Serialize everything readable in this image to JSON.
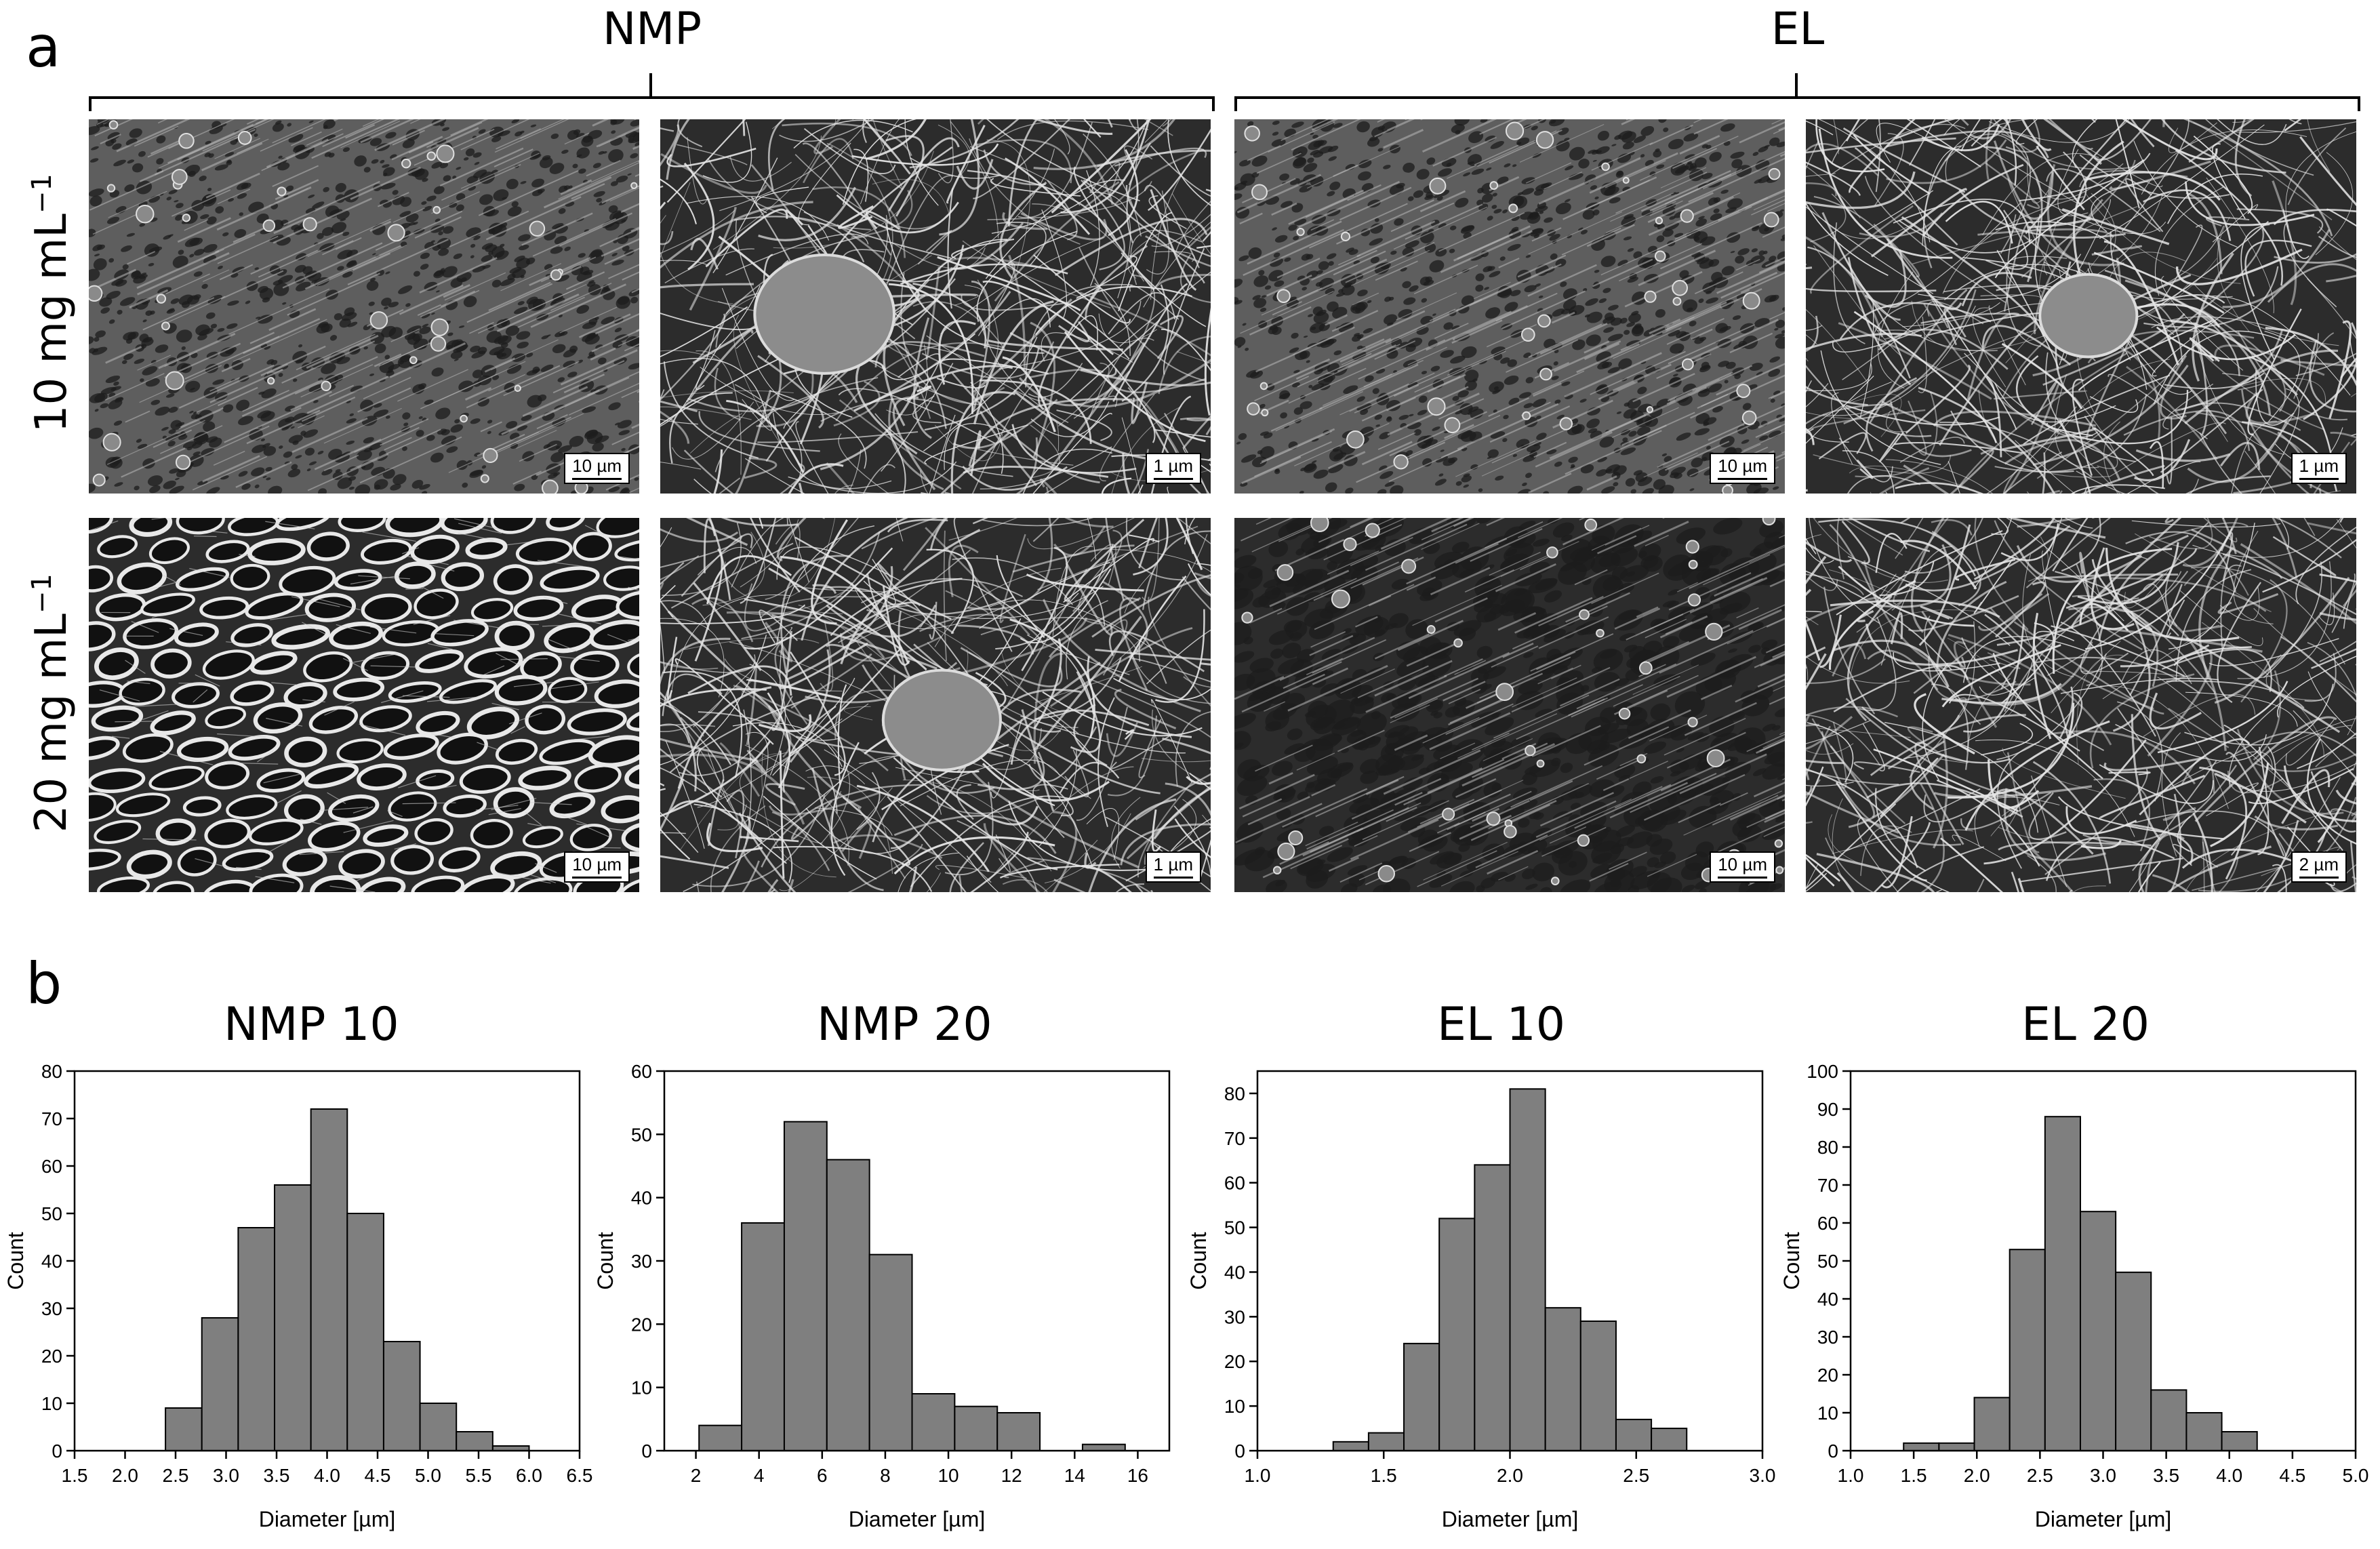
{
  "panel_a": {
    "letter": "a",
    "groups": [
      "NMP",
      "EL"
    ],
    "rows": [
      {
        "label": "10 mg mL",
        "sup": "−1"
      },
      {
        "label": "20 mg mL",
        "sup": "−1"
      }
    ],
    "images": [
      {
        "name": "sem-nmp-10-low",
        "scale": "10 µm",
        "style": "porous-fine",
        "seed": 11
      },
      {
        "name": "sem-nmp-10-high",
        "scale": "1 µm",
        "style": "fibers-particle",
        "seed": 12
      },
      {
        "name": "sem-el-10-low",
        "scale": "10 µm",
        "style": "porous-fine",
        "seed": 13
      },
      {
        "name": "sem-el-10-high",
        "scale": "1 µm",
        "style": "fibers-particle",
        "seed": 14
      },
      {
        "name": "sem-nmp-20-low",
        "scale": "10 µm",
        "style": "cellular",
        "seed": 21
      },
      {
        "name": "sem-nmp-20-high",
        "scale": "1 µm",
        "style": "fibers-particle",
        "seed": 22
      },
      {
        "name": "sem-el-20-low",
        "scale": "10 µm",
        "style": "porous-coarse",
        "seed": 23
      },
      {
        "name": "sem-el-20-high",
        "scale": "2 µm",
        "style": "fibers",
        "seed": 24
      }
    ]
  },
  "panel_b": {
    "letter": "b"
  },
  "chart_data": [
    {
      "type": "bar",
      "title": "NMP 10",
      "xlabel": "Diameter [µm]",
      "ylabel": "Count",
      "xlim": [
        1.5,
        6.5
      ],
      "ylim": [
        0,
        80
      ],
      "xticks": [
        1.5,
        2.0,
        2.5,
        3.0,
        3.5,
        4.0,
        4.5,
        5.0,
        5.5,
        6.0,
        6.5
      ],
      "xtick_labels": [
        "1.5",
        "2.0",
        "2.5",
        "3.0",
        "3.5",
        "4.0",
        "4.5",
        "5.0",
        "5.5",
        "6.0",
        "6.5"
      ],
      "yticks": [
        0,
        10,
        20,
        30,
        40,
        50,
        60,
        70,
        80
      ],
      "bin_edges": [
        2.4,
        2.76,
        3.12,
        3.48,
        3.84,
        4.2,
        4.56,
        4.92,
        5.28,
        5.64,
        6.0
      ],
      "values": [
        9,
        28,
        47,
        56,
        72,
        50,
        23,
        10,
        4,
        1
      ]
    },
    {
      "type": "bar",
      "title": "NMP 20",
      "xlabel": "Diameter [µm]",
      "ylabel": "Count",
      "xlim": [
        1,
        17
      ],
      "ylim": [
        0,
        60
      ],
      "xticks": [
        2,
        4,
        6,
        8,
        10,
        12,
        14,
        16
      ],
      "xtick_labels": [
        "2",
        "4",
        "6",
        "8",
        "10",
        "12",
        "14",
        "16"
      ],
      "yticks": [
        0,
        10,
        20,
        30,
        40,
        50,
        60
      ],
      "bin_edges": [
        2.1,
        3.45,
        4.8,
        6.15,
        7.5,
        8.85,
        10.2,
        11.55,
        12.9,
        14.25,
        15.6
      ],
      "values": [
        4,
        36,
        52,
        46,
        31,
        9,
        7,
        6,
        0,
        1
      ]
    },
    {
      "type": "bar",
      "title": "EL 10",
      "xlabel": "Diameter [µm]",
      "ylabel": "Count",
      "xlim": [
        1.0,
        3.0
      ],
      "ylim": [
        0,
        85
      ],
      "xticks": [
        1.0,
        1.5,
        2.0,
        2.5,
        3.0
      ],
      "xtick_labels": [
        "1.0",
        "1.5",
        "2.0",
        "2.5",
        "3.0"
      ],
      "yticks": [
        0,
        10,
        20,
        30,
        40,
        50,
        60,
        70,
        80
      ],
      "bin_edges": [
        1.3,
        1.44,
        1.58,
        1.72,
        1.86,
        2.0,
        2.14,
        2.28,
        2.42,
        2.56,
        2.7
      ],
      "values": [
        2,
        4,
        24,
        52,
        64,
        81,
        32,
        29,
        7,
        5
      ]
    },
    {
      "type": "bar",
      "title": "EL 20",
      "xlabel": "Diameter [µm]",
      "ylabel": "Count",
      "xlim": [
        1.0,
        5.0
      ],
      "ylim": [
        0,
        100
      ],
      "xticks": [
        1.0,
        1.5,
        2.0,
        2.5,
        3.0,
        3.5,
        4.0,
        4.5,
        5.0
      ],
      "xtick_labels": [
        "1.0",
        "1.5",
        "2.0",
        "2.5",
        "3.0",
        "3.5",
        "4.0",
        "4.5",
        "5.0"
      ],
      "yticks": [
        0,
        10,
        20,
        30,
        40,
        50,
        60,
        70,
        80,
        90,
        100
      ],
      "bin_edges": [
        1.42,
        1.7,
        1.98,
        2.26,
        2.54,
        2.82,
        3.1,
        3.38,
        3.66,
        3.94,
        4.22
      ],
      "values": [
        2,
        2,
        14,
        53,
        88,
        63,
        47,
        16,
        10,
        5
      ]
    }
  ]
}
